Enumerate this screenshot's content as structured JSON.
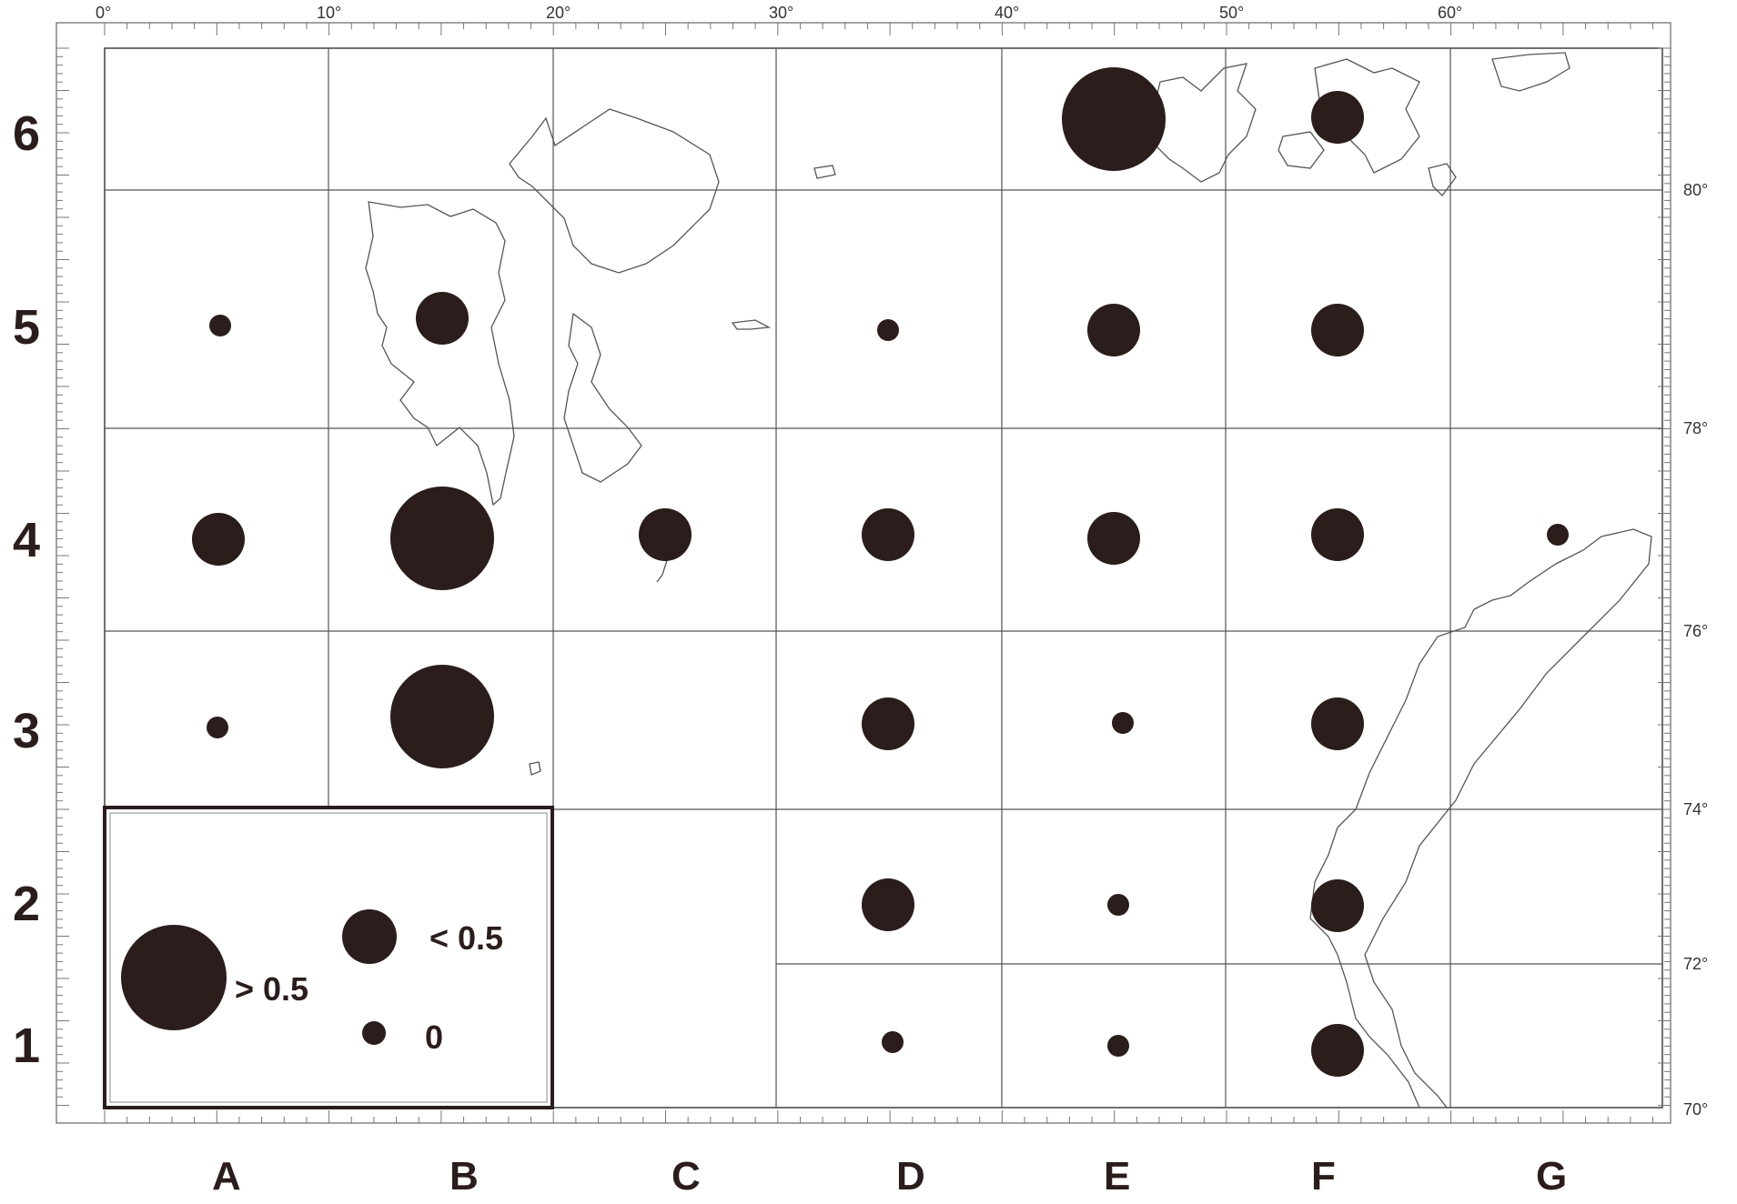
{
  "top_degrees": [
    "0°",
    "10°",
    "20°",
    "30°",
    "40°",
    "50°",
    "60°"
  ],
  "right_degrees": [
    "80°",
    "78°",
    "76°",
    "74°",
    "72°",
    "70°"
  ],
  "row_labels": [
    "6",
    "5",
    "4",
    "3",
    "2",
    "1"
  ],
  "column_labels": [
    "A",
    "B",
    "C",
    "D",
    "E",
    "F",
    "G"
  ],
  "legend": {
    "large_label": "> 0.5",
    "medium_label": "< 0.5",
    "small_label": "0"
  },
  "colors": {
    "dot": "#2a1d1b",
    "grid": "#555555",
    "coast": "#555555"
  },
  "symbols": [
    {
      "cell": "E6",
      "class": "> 0.5"
    },
    {
      "cell": "F6",
      "class": "< 0.5"
    },
    {
      "cell": "A5",
      "class": "0"
    },
    {
      "cell": "B5",
      "class": "< 0.5"
    },
    {
      "cell": "D5",
      "class": "0"
    },
    {
      "cell": "E5",
      "class": "< 0.5"
    },
    {
      "cell": "F5",
      "class": "< 0.5"
    },
    {
      "cell": "A4",
      "class": "< 0.5"
    },
    {
      "cell": "B4",
      "class": "> 0.5"
    },
    {
      "cell": "C4",
      "class": "< 0.5"
    },
    {
      "cell": "D4",
      "class": "< 0.5"
    },
    {
      "cell": "E4",
      "class": "< 0.5"
    },
    {
      "cell": "F4",
      "class": "< 0.5"
    },
    {
      "cell": "G4",
      "class": "0"
    },
    {
      "cell": "A3",
      "class": "0"
    },
    {
      "cell": "B3",
      "class": "> 0.5"
    },
    {
      "cell": "D3",
      "class": "< 0.5"
    },
    {
      "cell": "E3",
      "class": "0"
    },
    {
      "cell": "F3",
      "class": "< 0.5"
    },
    {
      "cell": "D2",
      "class": "< 0.5"
    },
    {
      "cell": "E2",
      "class": "0"
    },
    {
      "cell": "F2",
      "class": "< 0.5"
    },
    {
      "cell": "D1",
      "class": "0"
    },
    {
      "cell": "E1",
      "class": "0"
    },
    {
      "cell": "F1",
      "class": "< 0.5"
    }
  ]
}
